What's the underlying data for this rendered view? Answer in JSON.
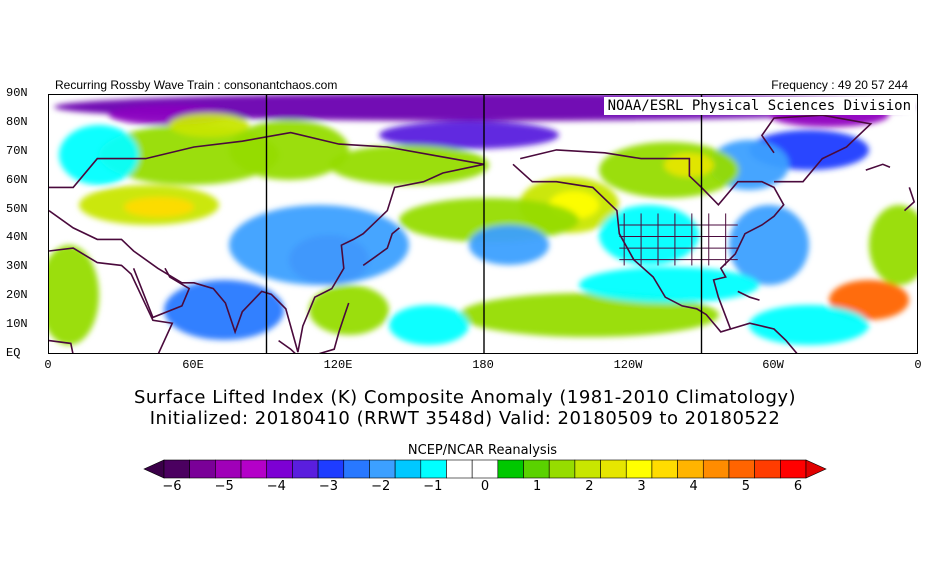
{
  "header": {
    "left_text": "Recurring Rossby Wave Train : consonantchaos.com",
    "right_text": "Frequency : 49 20 57 244"
  },
  "map": {
    "credit": "NOAA/ESRL Physical Sciences Division",
    "lat_labels": [
      "90N",
      "80N",
      "70N",
      "60N",
      "50N",
      "40N",
      "30N",
      "20N",
      "10N",
      "EQ"
    ],
    "lon_labels": [
      "0",
      "60E",
      "120E",
      "180",
      "120W",
      "60W",
      "0"
    ],
    "longitude_range_deg_east": [
      0,
      360
    ],
    "latitude_range_deg": [
      0,
      90
    ],
    "reference_meridians_deg_east": [
      90,
      180,
      270
    ]
  },
  "title": {
    "line1": "Surface Lifted Index (K) Composite Anomaly (1981-2010 Climatology)",
    "line2": "Initialized: 20180410 (RRWT 3548d) Valid: 20180509 to 20180522"
  },
  "colorbar": {
    "title": "NCEP/NCAR Reanalysis",
    "labels": [
      "−6",
      "−5",
      "−4",
      "−3",
      "−2",
      "−1",
      "0",
      "1",
      "2",
      "3",
      "4",
      "5",
      "6"
    ],
    "colors": [
      "#4b0060",
      "#7a0098",
      "#a000b8",
      "#b400c8",
      "#7d00d4",
      "#5a1ede",
      "#1e3cff",
      "#2878ff",
      "#3ca0ff",
      "#00c8ff",
      "#00ffff",
      "#ffffff",
      "#ffffff",
      "#00c800",
      "#5ad200",
      "#96dc00",
      "#c8e600",
      "#e6e600",
      "#ffff00",
      "#ffdc00",
      "#ffb400",
      "#ff8c00",
      "#ff6400",
      "#ff3c00",
      "#ff0000"
    ],
    "arrow_low_color": "#3a0048",
    "arrow_high_color": "#e00000"
  }
}
